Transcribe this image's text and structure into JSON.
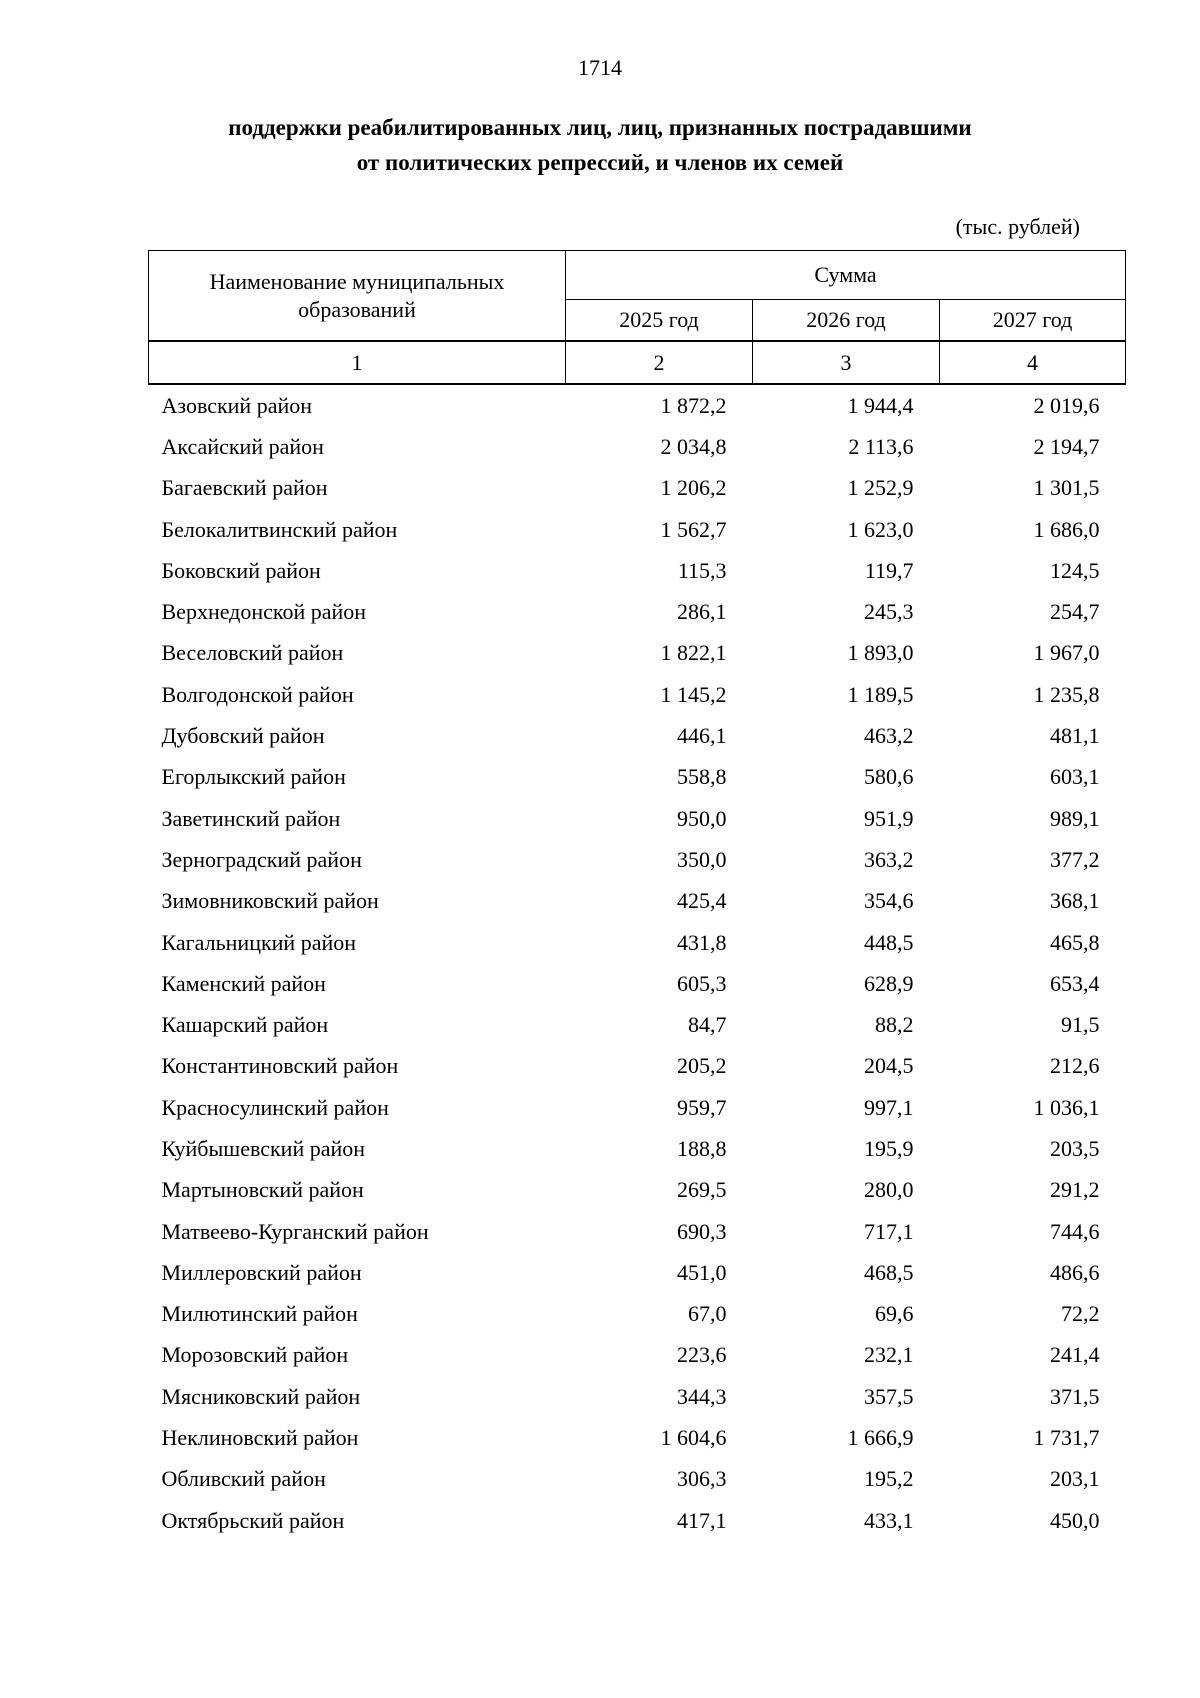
{
  "page": {
    "number": "1714",
    "title_line1": "поддержки реабилитированных лиц, лиц, признанных пострадавшими",
    "title_line2": "от политических репрессий, и членов их семей",
    "units_note": "(тыс. рублей)"
  },
  "table": {
    "header": {
      "name_column": "Наименование муниципальных образований",
      "sum_group": "Сумма",
      "years": [
        "2025 год",
        "2026 год",
        "2027 год"
      ],
      "column_numbers": [
        "1",
        "2",
        "3",
        "4"
      ]
    },
    "rows": [
      {
        "name": "Азовский район",
        "y2025": "1 872,2",
        "y2026": "1 944,4",
        "y2027": "2 019,6"
      },
      {
        "name": "Аксайский район",
        "y2025": "2 034,8",
        "y2026": "2 113,6",
        "y2027": "2 194,7"
      },
      {
        "name": "Багаевский район",
        "y2025": "1 206,2",
        "y2026": "1 252,9",
        "y2027": "1 301,5"
      },
      {
        "name": "Белокалитвинский район",
        "y2025": "1 562,7",
        "y2026": "1 623,0",
        "y2027": "1 686,0"
      },
      {
        "name": "Боковский район",
        "y2025": "115,3",
        "y2026": "119,7",
        "y2027": "124,5"
      },
      {
        "name": "Верхнедонской район",
        "y2025": "286,1",
        "y2026": "245,3",
        "y2027": "254,7"
      },
      {
        "name": "Веселовский район",
        "y2025": "1 822,1",
        "y2026": "1 893,0",
        "y2027": "1 967,0"
      },
      {
        "name": "Волгодонской район",
        "y2025": "1 145,2",
        "y2026": "1 189,5",
        "y2027": "1 235,8"
      },
      {
        "name": "Дубовский район",
        "y2025": "446,1",
        "y2026": "463,2",
        "y2027": "481,1"
      },
      {
        "name": "Егорлыкский район",
        "y2025": "558,8",
        "y2026": "580,6",
        "y2027": "603,1"
      },
      {
        "name": "Заветинский район",
        "y2025": "950,0",
        "y2026": "951,9",
        "y2027": "989,1"
      },
      {
        "name": "Зерноградский район",
        "y2025": "350,0",
        "y2026": "363,2",
        "y2027": "377,2"
      },
      {
        "name": "Зимовниковский район",
        "y2025": "425,4",
        "y2026": "354,6",
        "y2027": "368,1"
      },
      {
        "name": "Кагальницкий район",
        "y2025": "431,8",
        "y2026": "448,5",
        "y2027": "465,8"
      },
      {
        "name": "Каменский район",
        "y2025": "605,3",
        "y2026": "628,9",
        "y2027": "653,4"
      },
      {
        "name": "Кашарский район",
        "y2025": "84,7",
        "y2026": "88,2",
        "y2027": "91,5"
      },
      {
        "name": "Константиновский район",
        "y2025": "205,2",
        "y2026": "204,5",
        "y2027": "212,6"
      },
      {
        "name": "Красносулинский район",
        "y2025": "959,7",
        "y2026": "997,1",
        "y2027": "1 036,1"
      },
      {
        "name": "Куйбышевский район",
        "y2025": "188,8",
        "y2026": "195,9",
        "y2027": "203,5"
      },
      {
        "name": "Мартыновский район",
        "y2025": "269,5",
        "y2026": "280,0",
        "y2027": "291,2"
      },
      {
        "name": "Матвеево-Курганский район",
        "y2025": "690,3",
        "y2026": "717,1",
        "y2027": "744,6"
      },
      {
        "name": "Миллеровский район",
        "y2025": "451,0",
        "y2026": "468,5",
        "y2027": "486,6"
      },
      {
        "name": "Милютинский район",
        "y2025": "67,0",
        "y2026": "69,6",
        "y2027": "72,2"
      },
      {
        "name": "Морозовский район",
        "y2025": "223,6",
        "y2026": "232,1",
        "y2027": "241,4"
      },
      {
        "name": "Мясниковский район",
        "y2025": "344,3",
        "y2026": "357,5",
        "y2027": "371,5"
      },
      {
        "name": "Неклиновский район",
        "y2025": "1 604,6",
        "y2026": "1 666,9",
        "y2027": "1 731,7"
      },
      {
        "name": "Обливский район",
        "y2025": "306,3",
        "y2026": "195,2",
        "y2027": "203,1"
      },
      {
        "name": "Октябрьский район",
        "y2025": "417,1",
        "y2026": "433,1",
        "y2027": "450,0"
      }
    ]
  }
}
